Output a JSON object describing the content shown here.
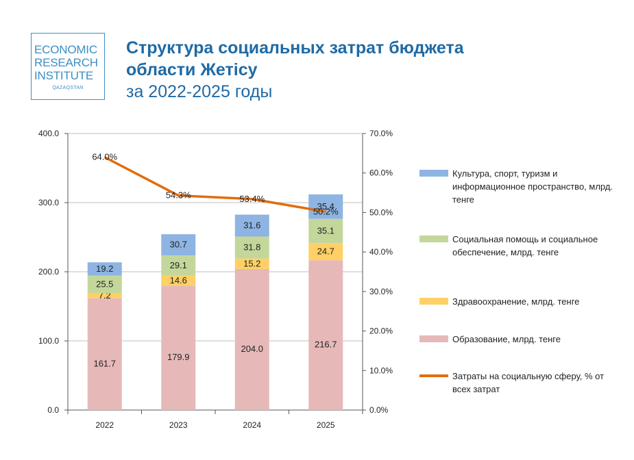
{
  "logo": {
    "line1": "ECONOMIC",
    "line2": "RESEARCH",
    "line3": "INSTITUTE",
    "line4": "QAZAQSTAN"
  },
  "header": {
    "title_line1": "Структура социальных затрат бюджета",
    "title_line2": "области Жетісу",
    "subtitle": "за 2022-2025 годы"
  },
  "colors": {
    "culture": "#8eb4e3",
    "social": "#c4d79b",
    "health": "#ffd066",
    "education": "#e6b9b8",
    "line": "#e36c09",
    "title": "#1f6aa5"
  },
  "chart_data": {
    "type": "bar",
    "stacked": true,
    "categories": [
      "2022",
      "2023",
      "2024",
      "2025"
    ],
    "series": [
      {
        "key": "education",
        "name": "Образование, млрд. тенге",
        "values": [
          161.7,
          179.9,
          204.0,
          216.7
        ],
        "labels": [
          "161.7",
          "179.9",
          "204.0",
          "216.7"
        ]
      },
      {
        "key": "health",
        "name": "Здравоохранение, млрд. тенге",
        "values": [
          7.2,
          14.6,
          15.2,
          24.7
        ],
        "labels": [
          "7.2",
          "14.6",
          "15.2",
          "24.7"
        ]
      },
      {
        "key": "social",
        "name": "Социальная помощь и социальное обеспечение, млрд. тенге",
        "values": [
          25.5,
          29.1,
          31.8,
          35.1
        ],
        "labels": [
          "25.5",
          "29.1",
          "31.8",
          "35.1"
        ]
      },
      {
        "key": "culture",
        "name": "Культура, спорт, туризм и информационное пространство, млрд. тенге",
        "values": [
          19.2,
          30.7,
          31.6,
          35.4
        ],
        "labels": [
          "19.2",
          "30.7",
          "31.6",
          "35.4"
        ]
      }
    ],
    "line_series": {
      "name": "Затраты на социальную сферу, % от всех затрат",
      "values": [
        64.0,
        54.3,
        53.4,
        50.2
      ],
      "labels": [
        "64.0%",
        "54.3%",
        "53.4%",
        "50.2%"
      ]
    },
    "y_left": {
      "min": 0,
      "max": 400,
      "ticks": [
        "0.0",
        "100.0",
        "200.0",
        "300.0",
        "400.0"
      ]
    },
    "y_right": {
      "min": 0,
      "max": 70,
      "ticks": [
        "0.0%",
        "10.0%",
        "20.0%",
        "30.0%",
        "40.0%",
        "50.0%",
        "60.0%",
        "70.0%"
      ]
    },
    "grid": true,
    "legend_position": "right"
  },
  "legend": {
    "culture": "Культура, спорт, туризм и информационное пространство, млрд. тенге",
    "social": "Социальная помощь и социальное обеспечение, млрд. тенге",
    "health": "Здравоохранение, млрд. тенге",
    "education": "Образование, млрд. тенге",
    "line": "Затраты на социальную сферу, % от всех затрат"
  }
}
